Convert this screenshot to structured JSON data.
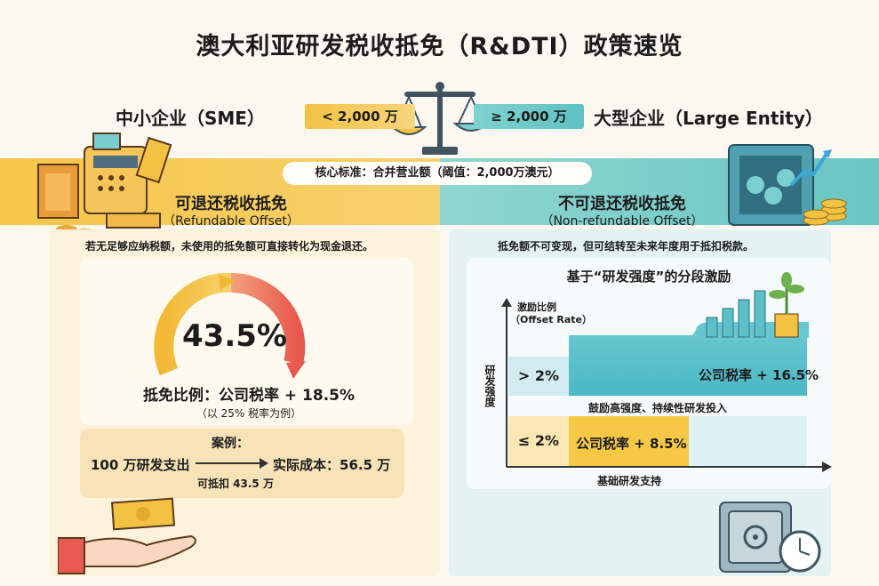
{
  "title": "澳大利亚研发税收抵免（R&DTI）政策速览",
  "sme": {
    "title": "中小企业（SME）",
    "threshold": "< 2,000 万",
    "heading": "可退还税收抵免",
    "heading_en": "（Refundable Offset）",
    "description": "若无足够应纳税额，未使用的抵免额可直接转化为现金退还。",
    "rate": "43.5%",
    "ratio_label": "抵免比例：公司税率 + 18.5%",
    "ratio_note": "（以 25% 税率为例）",
    "case_title": "案例：",
    "case_input": "100 万研发支出",
    "case_credit": "可抵扣 43.5 万",
    "case_cost": "实际成本：56.5 万"
  },
  "core_criteria": "核心标准：合并营业额（阈值：2,000万澳元）",
  "large": {
    "title": "大型企业（Large Entity）",
    "threshold": "≥ 2,000 万",
    "heading": "不可退还税收抵免",
    "heading_en": "（Non-refundable Offset）",
    "description": "抵免额不可变现，但可结转至未来年度用于抵扣税款。",
    "chart_title": "基于“研发强度”的分段激励",
    "y_label_1": "激励比例",
    "y_label_2": "（Offset Rate）",
    "x_axis_label": "研发强度",
    "high_label": "> 2%",
    "high_rate": "公司税率 + 16.5%",
    "high_note": "鼓励高强度、持续性研发投入",
    "low_label": "≤ 2%",
    "low_rate": "公司税率 + 8.5%",
    "base_label": "基础研发支持"
  },
  "colors": {
    "yellow": "#f6c648",
    "teal": "#5fc2c2",
    "orange_red": "#e95b50"
  },
  "icons": [
    "scale-icon",
    "cash-register-icon",
    "safe-icon",
    "hand-cash-icon",
    "vault-icon",
    "plant-icon",
    "arrow-right-icon"
  ]
}
